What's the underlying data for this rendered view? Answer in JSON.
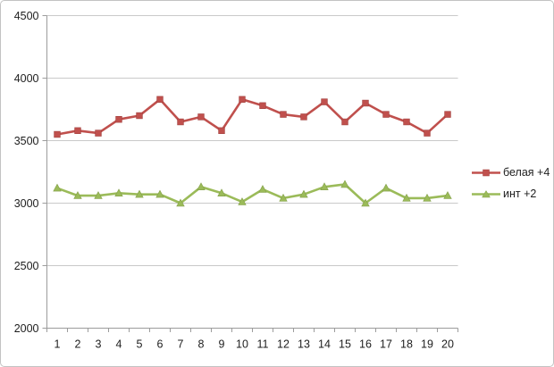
{
  "chart_data": {
    "type": "line",
    "x": [
      1,
      2,
      3,
      4,
      5,
      6,
      7,
      8,
      9,
      10,
      11,
      12,
      13,
      14,
      15,
      16,
      17,
      18,
      19,
      20
    ],
    "series": [
      {
        "name": "белая +4",
        "color": "#c0504d",
        "marker": "square",
        "values": [
          3550,
          3580,
          3560,
          3670,
          3700,
          3830,
          3650,
          3690,
          3580,
          3830,
          3780,
          3710,
          3690,
          3810,
          3650,
          3800,
          3710,
          3650,
          3560,
          3710
        ]
      },
      {
        "name": "инт +2",
        "color": "#9bbb59",
        "marker": "triangle",
        "values": [
          3120,
          3060,
          3060,
          3080,
          3070,
          3070,
          3000,
          3130,
          3080,
          3010,
          3110,
          3040,
          3070,
          3130,
          3150,
          3000,
          3120,
          3040,
          3040,
          3060
        ]
      }
    ],
    "title": "",
    "xlabel": "",
    "ylabel": "",
    "ylim": [
      2000,
      4500
    ],
    "yticks": [
      2000,
      2500,
      3000,
      3500,
      4000,
      4500
    ],
    "grid": true,
    "legend_position": "right"
  },
  "colors": {
    "gridline": "#c9c9c9",
    "axis": "#9c9c9c",
    "tick_text": "#1d1d1d",
    "background": "#ffffff"
  }
}
